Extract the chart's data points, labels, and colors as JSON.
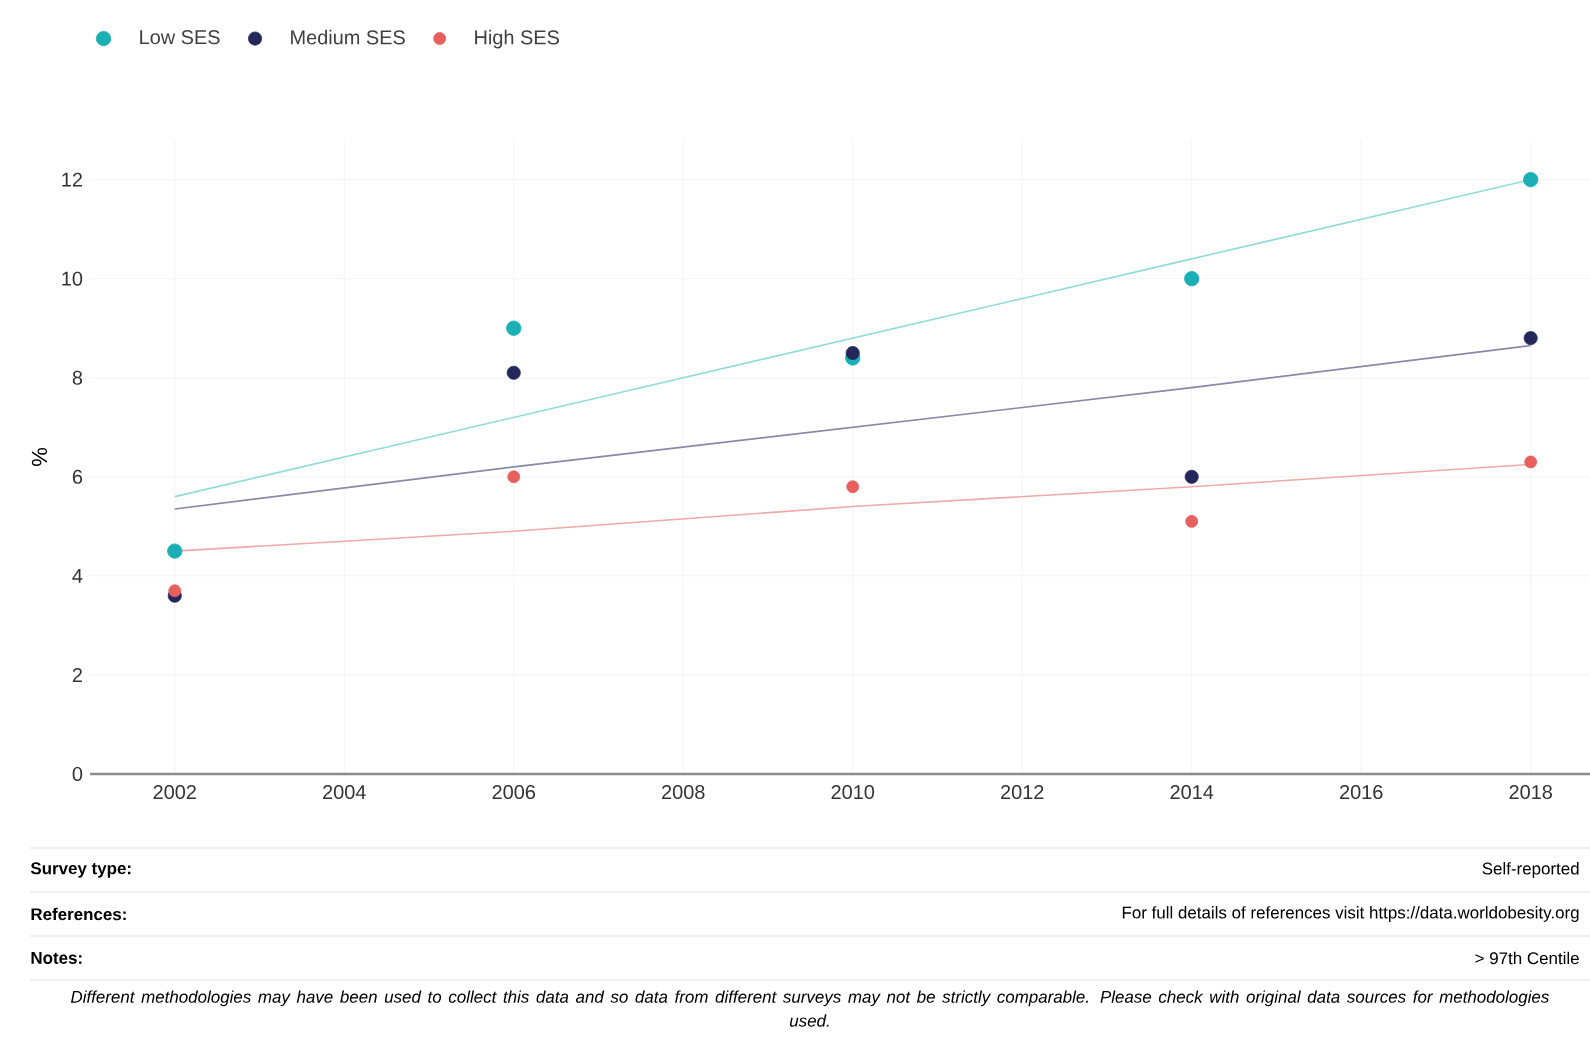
{
  "chart_data": {
    "type": "scatter",
    "ylabel": "%",
    "x": [
      2002,
      2006,
      2010,
      2014,
      2018
    ],
    "series": [
      {
        "name": "Low SES",
        "color": "#1aafb4",
        "marker": "circle",
        "values": [
          4.5,
          9.0,
          8.4,
          10.0,
          12.0
        ]
      },
      {
        "name": "Medium SES",
        "color": "#22285a",
        "marker": "circle",
        "values": [
          3.6,
          8.1,
          8.5,
          6.0,
          8.8
        ]
      },
      {
        "name": "High SES",
        "color": "#e8605e",
        "marker": "circle",
        "values": [
          3.7,
          6.0,
          5.8,
          5.1,
          6.3
        ]
      },
      {
        "type": "line",
        "color": "#8fdbdc",
        "marker": "none",
        "values": [
          5.6,
          7.2,
          8.8,
          10.4,
          12.0
        ]
      },
      {
        "type": "line",
        "color": "#8a87a8",
        "marker": "none",
        "values": [
          5.35,
          6.2,
          7.0,
          7.8,
          8.65
        ]
      },
      {
        "type": "line",
        "color": "#f0a8a8",
        "marker": "none",
        "values": [
          4.5,
          4.9,
          5.4,
          5.8,
          6.25
        ]
      }
    ],
    "xlim": [
      2001,
      2018.7
    ],
    "ylim": [
      0,
      12.8
    ],
    "xticks": [
      2002,
      2004,
      2006,
      2008,
      2010,
      2012,
      2014,
      2016,
      2018
    ],
    "yticks": [
      0,
      2,
      4,
      6,
      8,
      10,
      12
    ],
    "grid": true,
    "legend": "top left",
    "annotations": [
      "Survey type:",
      "Self-reported",
      "References:",
      "For full details of references visit https://data.worldobesity.org",
      "Notes:",
      "> 97th Centile",
      "Different methodologies may have been used to collect this data and so data from different surveys may not be strictly comparable. Please check with original data sources for methodologies used."
    ]
  }
}
